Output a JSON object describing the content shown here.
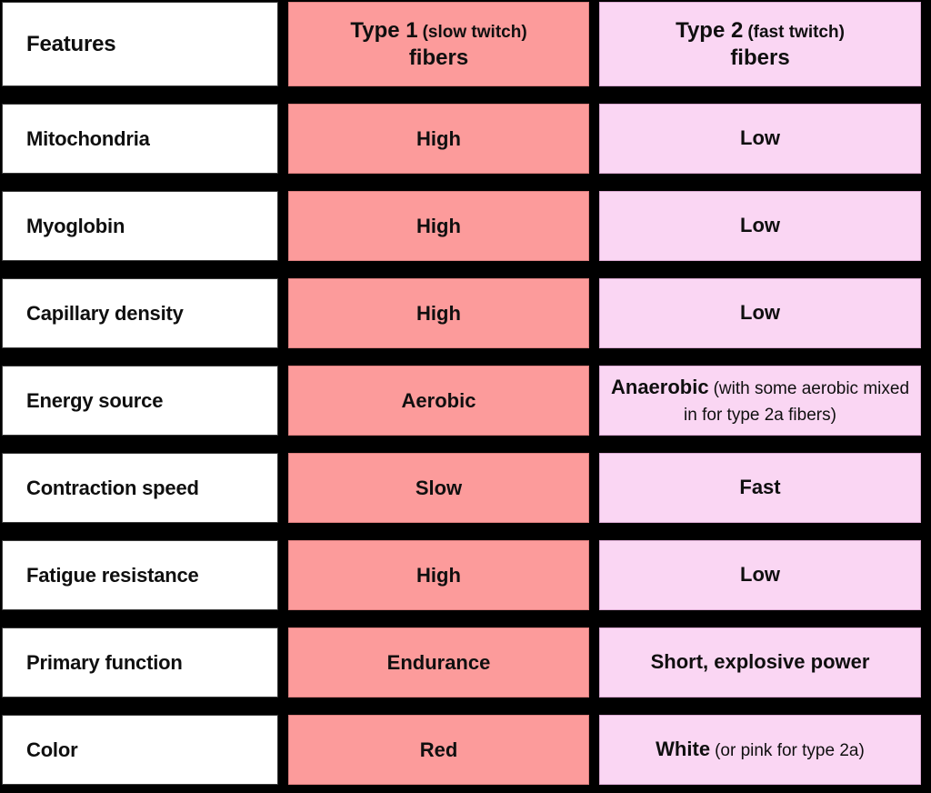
{
  "colors": {
    "background": "#000000",
    "feature_cell": "#ffffff",
    "type1_cell": "#fc9b9b",
    "type2_cell": "#fad6f3",
    "text": "#0f0f0f"
  },
  "header": {
    "features": "Features",
    "type1": {
      "title": "Type 1",
      "paren": "(slow twitch)",
      "suffix": "fibers"
    },
    "type2": {
      "title": "Type 2",
      "paren": "(fast twitch)",
      "suffix": "fibers"
    }
  },
  "rows": [
    {
      "feature": "Mitochondria",
      "type1": "High",
      "type2": {
        "main": "Low",
        "note": ""
      }
    },
    {
      "feature": "Myoglobin",
      "type1": "High",
      "type2": {
        "main": "Low",
        "note": ""
      }
    },
    {
      "feature": "Capillary density",
      "type1": "High",
      "type2": {
        "main": "Low",
        "note": ""
      }
    },
    {
      "feature": "Energy source",
      "type1": "Aerobic",
      "type2": {
        "main": "Anaerobic",
        "note": "(with some aerobic mixed in for type 2a fibers)"
      }
    },
    {
      "feature": "Contraction speed",
      "type1": "Slow",
      "type2": {
        "main": "Fast",
        "note": ""
      }
    },
    {
      "feature": "Fatigue resistance",
      "type1": "High",
      "type2": {
        "main": "Low",
        "note": ""
      }
    },
    {
      "feature": "Primary function",
      "type1": "Endurance",
      "type2": {
        "main": "Short, explosive power",
        "note": ""
      }
    },
    {
      "feature": "Color",
      "type1": "Red",
      "type2": {
        "main": "White",
        "note": "(or pink for type 2a)"
      }
    }
  ],
  "chart_data": {
    "type": "table",
    "title": "Type 1 vs Type 2 muscle fiber comparison",
    "columns": [
      "Features",
      "Type 1 (slow twitch) fibers",
      "Type 2 (fast twitch) fibers"
    ],
    "rows": [
      [
        "Mitochondria",
        "High",
        "Low"
      ],
      [
        "Myoglobin",
        "High",
        "Low"
      ],
      [
        "Capillary density",
        "High",
        "Low"
      ],
      [
        "Energy source",
        "Aerobic",
        "Anaerobic (with some aerobic mixed in for type 2a fibers)"
      ],
      [
        "Contraction speed",
        "Slow",
        "Fast"
      ],
      [
        "Fatigue resistance",
        "High",
        "Low"
      ],
      [
        "Primary function",
        "Endurance",
        "Short, explosive power"
      ],
      [
        "Color",
        "Red",
        "White (or pink for type 2a)"
      ]
    ]
  }
}
